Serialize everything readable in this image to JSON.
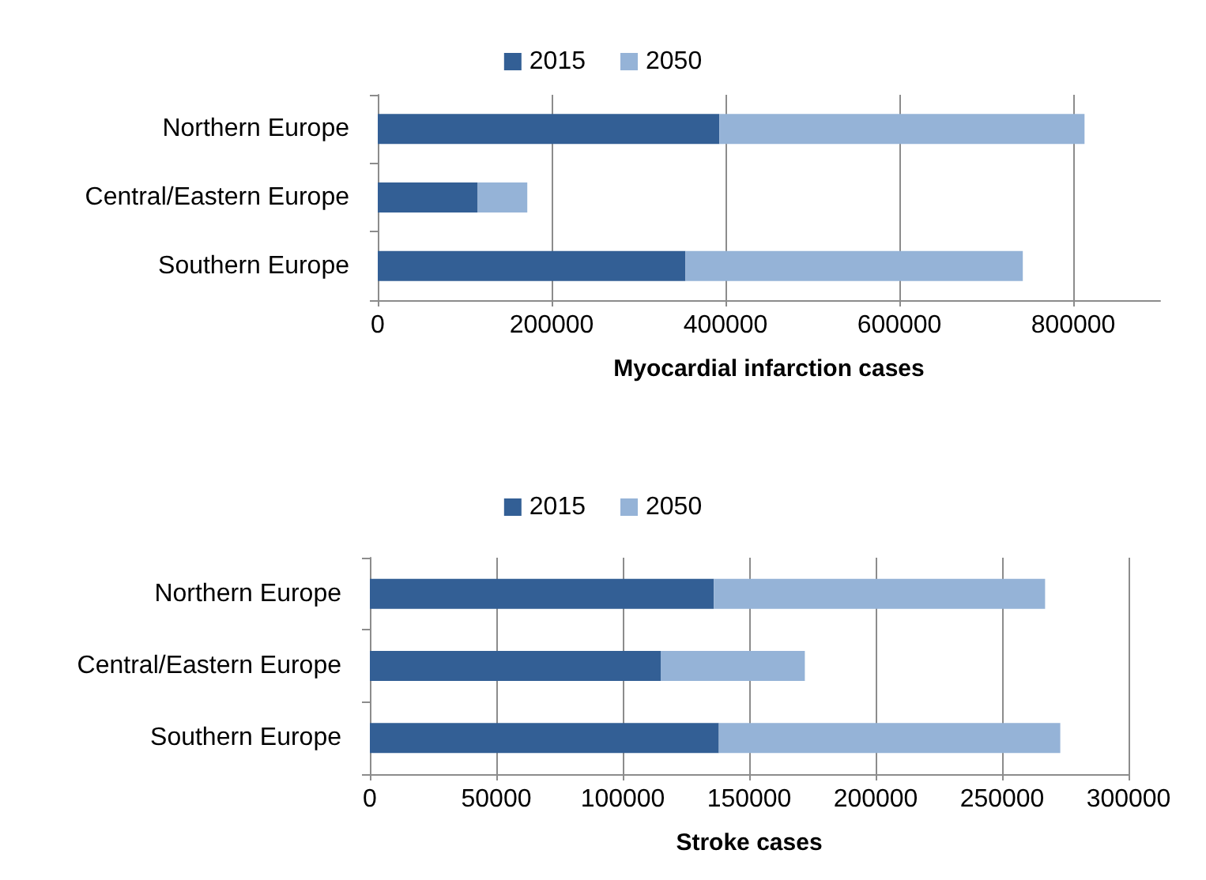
{
  "chart_data": [
    {
      "type": "bar",
      "orientation": "horizontal",
      "stacked": true,
      "xlabel": "Myocardial infarction cases",
      "categories": [
        "Northern Europe",
        "Central/Eastern Europe",
        "Southern Europe"
      ],
      "series": [
        {
          "name": "2015",
          "color": "#335f95",
          "values": [
            393000,
            115000,
            354000
          ]
        },
        {
          "name": "2050",
          "color": "#95b3d7",
          "values": [
            420000,
            57000,
            388000
          ]
        }
      ],
      "xlim": [
        0,
        900000
      ],
      "xticks": [
        0,
        200000,
        400000,
        600000,
        800000
      ],
      "grid": "x",
      "legend": "top"
    },
    {
      "type": "bar",
      "orientation": "horizontal",
      "stacked": true,
      "xlabel": "Stroke cases",
      "categories": [
        "Northern Europe",
        "Central/Eastern Europe",
        "Southern Europe"
      ],
      "series": [
        {
          "name": "2015",
          "color": "#335f95",
          "values": [
            136000,
            115000,
            138000
          ]
        },
        {
          "name": "2050",
          "color": "#95b3d7",
          "values": [
            131000,
            57000,
            135000
          ]
        }
      ],
      "xlim": [
        0,
        300000
      ],
      "xticks": [
        0,
        50000,
        100000,
        150000,
        200000,
        250000,
        300000
      ],
      "grid": "x",
      "legend": "top"
    }
  ]
}
